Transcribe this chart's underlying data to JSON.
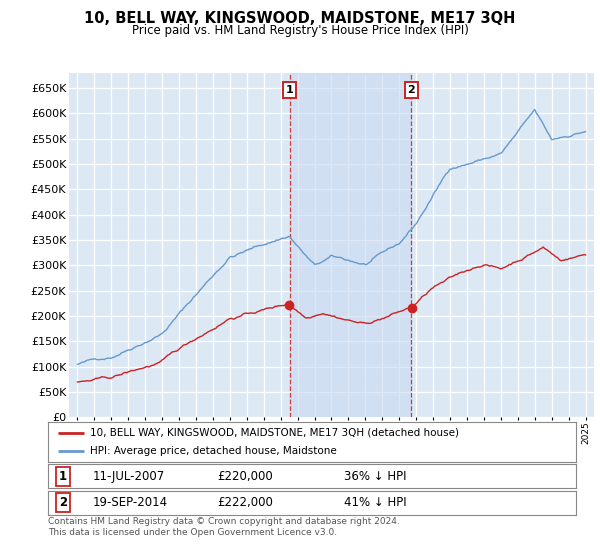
{
  "title": "10, BELL WAY, KINGSWOOD, MAIDSTONE, ME17 3QH",
  "subtitle": "Price paid vs. HM Land Registry's House Price Index (HPI)",
  "background_color": "#ffffff",
  "plot_bg_color": "#dce9f5",
  "hpi_color": "#6699cc",
  "price_color": "#cc2222",
  "shade_color": "#c8daf0",
  "marker1_year": 2007.53,
  "marker2_year": 2014.72,
  "legend_entry1": "10, BELL WAY, KINGSWOOD, MAIDSTONE, ME17 3QH (detached house)",
  "legend_entry2": "HPI: Average price, detached house, Maidstone",
  "table_row1": [
    "1",
    "11-JUL-2007",
    "£220,000",
    "36% ↓ HPI"
  ],
  "table_row2": [
    "2",
    "19-SEP-2014",
    "£222,000",
    "41% ↓ HPI"
  ],
  "footer": "Contains HM Land Registry data © Crown copyright and database right 2024.\nThis data is licensed under the Open Government Licence v3.0.",
  "ylim": [
    0,
    680000
  ],
  "ytick_vals": [
    0,
    50000,
    100000,
    150000,
    200000,
    250000,
    300000,
    350000,
    400000,
    450000,
    500000,
    550000,
    600000,
    650000
  ],
  "xlim_start": 1994.5,
  "xlim_end": 2025.5,
  "grid_color": "#ffffff",
  "spine_color": "#cccccc"
}
